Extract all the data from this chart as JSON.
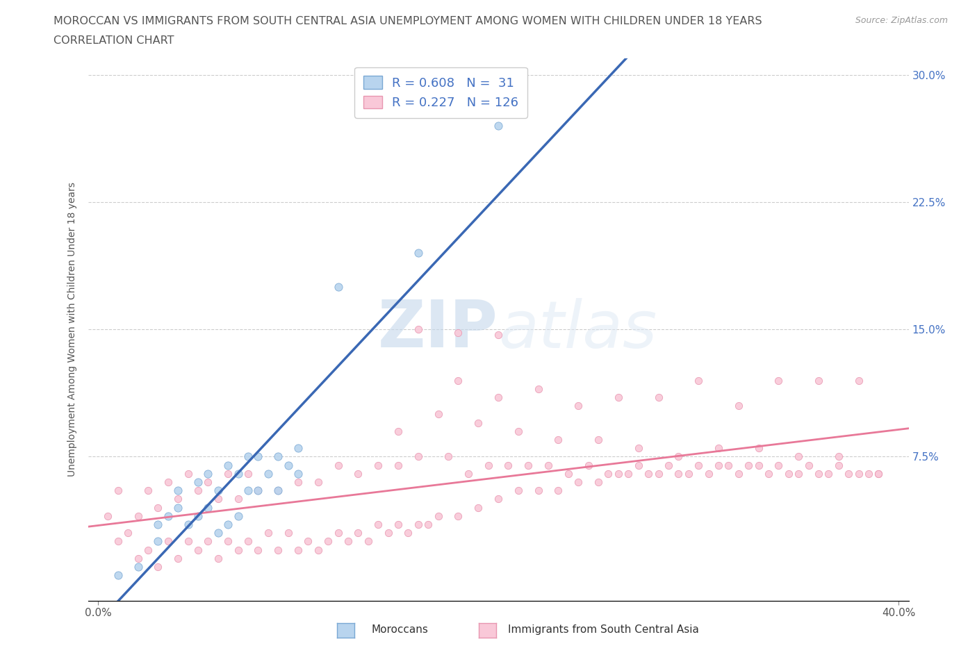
{
  "title_line1": "MOROCCAN VS IMMIGRANTS FROM SOUTH CENTRAL ASIA UNEMPLOYMENT AMONG WOMEN WITH CHILDREN UNDER 18 YEARS",
  "title_line2": "CORRELATION CHART",
  "source_text": "Source: ZipAtlas.com",
  "ylabel": "Unemployment Among Women with Children Under 18 years",
  "xlim": [
    -0.005,
    0.405
  ],
  "ylim": [
    -0.01,
    0.31
  ],
  "xtick_labels": [
    "0.0%",
    "40.0%"
  ],
  "xtick_vals": [
    0.0,
    0.4
  ],
  "ytick_labels": [
    "7.5%",
    "15.0%",
    "22.5%",
    "30.0%"
  ],
  "ytick_vals": [
    0.075,
    0.15,
    0.225,
    0.3
  ],
  "grid_ytick_vals": [
    0.075,
    0.15,
    0.225,
    0.3
  ],
  "color_blue": "#b8d4ee",
  "color_blue_edge": "#7aa8d4",
  "color_blue_line": "#3a68b4",
  "color_pink": "#f9c8d8",
  "color_pink_edge": "#e896b0",
  "color_pink_line": "#e87898",
  "legend_R1": "0.608",
  "legend_N1": "31",
  "legend_R2": "0.227",
  "legend_N2": "126",
  "legend_label1": "Moroccans",
  "legend_label2": "Immigrants from South Central Asia",
  "watermark_zip": "ZIP",
  "watermark_atlas": "atlas",
  "background_color": "#ffffff",
  "moroccans_x": [
    0.01,
    0.02,
    0.03,
    0.03,
    0.035,
    0.04,
    0.04,
    0.045,
    0.05,
    0.05,
    0.055,
    0.055,
    0.06,
    0.06,
    0.065,
    0.065,
    0.07,
    0.07,
    0.075,
    0.075,
    0.08,
    0.08,
    0.085,
    0.09,
    0.09,
    0.095,
    0.1,
    0.1,
    0.12,
    0.16,
    0.2
  ],
  "moroccans_y": [
    0.005,
    0.01,
    0.025,
    0.035,
    0.04,
    0.045,
    0.055,
    0.035,
    0.04,
    0.06,
    0.045,
    0.065,
    0.03,
    0.055,
    0.035,
    0.07,
    0.04,
    0.065,
    0.055,
    0.075,
    0.055,
    0.075,
    0.065,
    0.055,
    0.075,
    0.07,
    0.065,
    0.08,
    0.175,
    0.195,
    0.27
  ],
  "immigrants_x": [
    0.005,
    0.01,
    0.01,
    0.015,
    0.02,
    0.02,
    0.025,
    0.025,
    0.03,
    0.03,
    0.035,
    0.035,
    0.04,
    0.04,
    0.045,
    0.045,
    0.05,
    0.05,
    0.055,
    0.055,
    0.06,
    0.06,
    0.065,
    0.065,
    0.07,
    0.07,
    0.075,
    0.075,
    0.08,
    0.08,
    0.085,
    0.09,
    0.09,
    0.095,
    0.1,
    0.1,
    0.105,
    0.11,
    0.11,
    0.115,
    0.12,
    0.12,
    0.125,
    0.13,
    0.13,
    0.135,
    0.14,
    0.14,
    0.145,
    0.15,
    0.15,
    0.155,
    0.16,
    0.16,
    0.165,
    0.17,
    0.175,
    0.18,
    0.185,
    0.19,
    0.195,
    0.2,
    0.205,
    0.21,
    0.215,
    0.22,
    0.225,
    0.23,
    0.235,
    0.24,
    0.245,
    0.25,
    0.255,
    0.26,
    0.265,
    0.27,
    0.275,
    0.28,
    0.285,
    0.29,
    0.295,
    0.3,
    0.305,
    0.31,
    0.315,
    0.32,
    0.325,
    0.33,
    0.335,
    0.34,
    0.345,
    0.35,
    0.355,
    0.36,
    0.365,
    0.37,
    0.375,
    0.38,
    0.385,
    0.39,
    0.18,
    0.2,
    0.22,
    0.24,
    0.26,
    0.28,
    0.3,
    0.32,
    0.34,
    0.36,
    0.38,
    0.15,
    0.17,
    0.19,
    0.21,
    0.23,
    0.25,
    0.27,
    0.29,
    0.31,
    0.33,
    0.35,
    0.37,
    0.39,
    0.16,
    0.18,
    0.2
  ],
  "immigrants_y": [
    0.04,
    0.025,
    0.055,
    0.03,
    0.015,
    0.04,
    0.02,
    0.055,
    0.01,
    0.045,
    0.025,
    0.06,
    0.015,
    0.05,
    0.025,
    0.065,
    0.02,
    0.055,
    0.025,
    0.06,
    0.015,
    0.05,
    0.025,
    0.065,
    0.02,
    0.05,
    0.025,
    0.065,
    0.02,
    0.055,
    0.03,
    0.02,
    0.055,
    0.03,
    0.02,
    0.06,
    0.025,
    0.02,
    0.06,
    0.025,
    0.03,
    0.07,
    0.025,
    0.03,
    0.065,
    0.025,
    0.035,
    0.07,
    0.03,
    0.035,
    0.07,
    0.03,
    0.035,
    0.075,
    0.035,
    0.04,
    0.075,
    0.04,
    0.065,
    0.045,
    0.07,
    0.05,
    0.07,
    0.055,
    0.07,
    0.055,
    0.07,
    0.055,
    0.065,
    0.06,
    0.07,
    0.06,
    0.065,
    0.065,
    0.065,
    0.07,
    0.065,
    0.065,
    0.07,
    0.065,
    0.065,
    0.07,
    0.065,
    0.07,
    0.07,
    0.065,
    0.07,
    0.07,
    0.065,
    0.07,
    0.065,
    0.065,
    0.07,
    0.065,
    0.065,
    0.07,
    0.065,
    0.065,
    0.065,
    0.065,
    0.12,
    0.11,
    0.115,
    0.105,
    0.11,
    0.11,
    0.12,
    0.105,
    0.12,
    0.12,
    0.12,
    0.09,
    0.1,
    0.095,
    0.09,
    0.085,
    0.085,
    0.08,
    0.075,
    0.08,
    0.08,
    0.075,
    0.075,
    0.065,
    0.15,
    0.148,
    0.147
  ]
}
